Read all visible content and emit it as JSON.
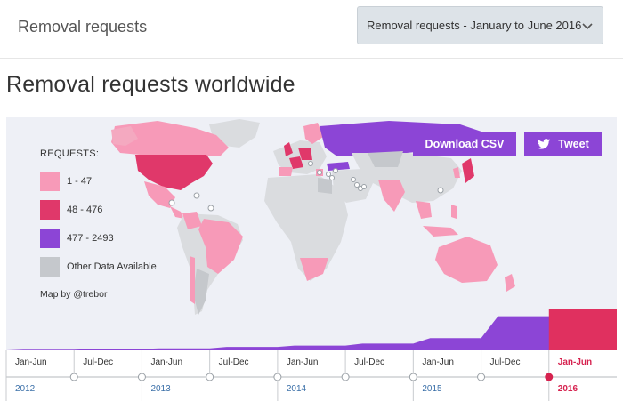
{
  "header": {
    "section_label": "Removal requests",
    "period_select": {
      "value": "Removal requests - January to June 2016",
      "icon": "chevron-down-icon"
    }
  },
  "page_title": "Removal requests worldwide",
  "legend": {
    "title": "REQUESTS:",
    "items": [
      {
        "label": "1 - 47",
        "color": "#f79ab8"
      },
      {
        "label": "48 - 476",
        "color": "#e0386a"
      },
      {
        "label": "477 - 2493",
        "color": "#8c45d6"
      },
      {
        "label": "Other Data Available",
        "color": "#c5c8cc"
      }
    ]
  },
  "map_credit": "Map by @trebor",
  "actions": {
    "download_csv": "Download CSV",
    "tweet": "Tweet",
    "tweet_icon": "twitter-bird-icon"
  },
  "colors": {
    "accent": "#8c45d6",
    "active": "#d6224f",
    "unselected_land": "#dadcdf",
    "no_data": "#c5c8cc"
  },
  "timeline": {
    "periods": [
      "Jan-Jun",
      "Jul-Dec",
      "Jan-Jun",
      "Jul-Dec",
      "Jan-Jun",
      "Jul-Dec",
      "Jan-Jun",
      "Jul-Dec",
      "Jan-Jun"
    ],
    "years": [
      "2012",
      "2013",
      "2014",
      "2015",
      "2016"
    ],
    "active_index": 8,
    "request_trend": [
      1,
      2,
      3,
      5,
      7,
      10,
      18,
      50,
      60
    ]
  }
}
